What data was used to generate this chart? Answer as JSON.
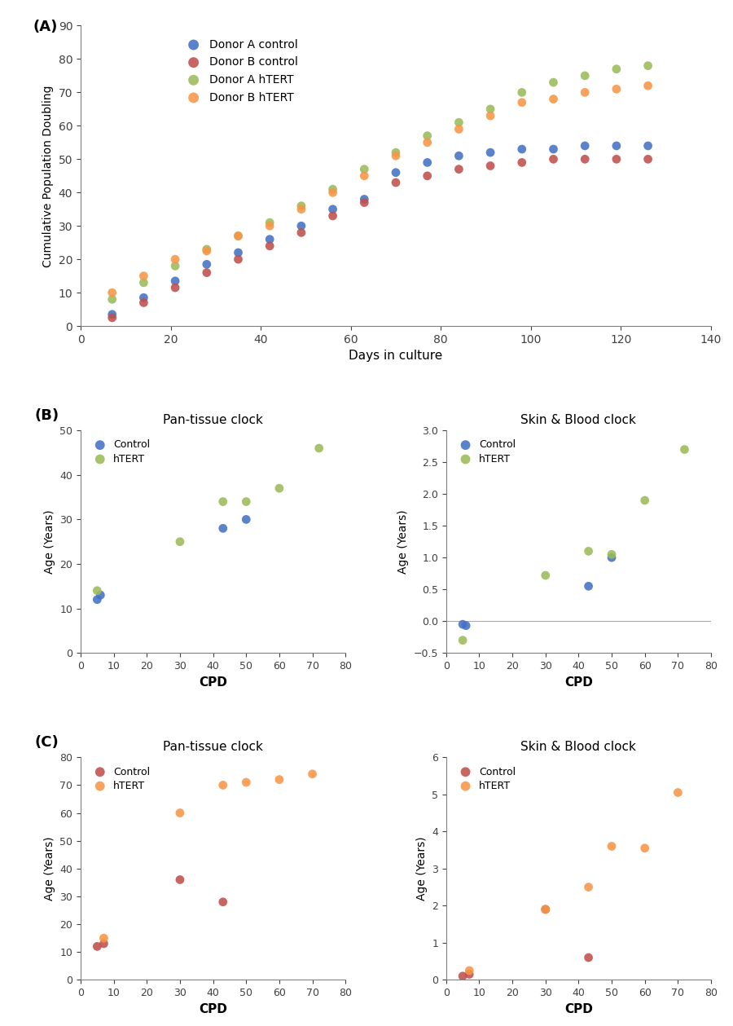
{
  "panel_A": {
    "donor_A_control": {
      "x": [
        7,
        14,
        21,
        28,
        35,
        42,
        49,
        56,
        63,
        70,
        77,
        84,
        91,
        98,
        105,
        112,
        119,
        126
      ],
      "y": [
        3.5,
        8.5,
        13.5,
        18.5,
        22,
        26,
        30,
        35,
        38,
        46,
        49,
        51,
        52,
        53,
        53,
        54,
        54,
        54
      ],
      "color": "#4472C4"
    },
    "donor_B_control": {
      "x": [
        7,
        14,
        21,
        28,
        35,
        42,
        49,
        56,
        63,
        70,
        77,
        84,
        91,
        98,
        105,
        112,
        119,
        126
      ],
      "y": [
        2.5,
        7,
        11.5,
        16,
        20,
        24,
        28,
        33,
        37,
        43,
        45,
        47,
        48,
        49,
        50,
        50,
        50,
        50
      ],
      "color": "#C0504D"
    },
    "donor_A_hTERT": {
      "x": [
        7,
        14,
        21,
        28,
        35,
        42,
        49,
        56,
        63,
        70,
        77,
        84,
        91,
        98,
        105,
        112,
        119,
        126
      ],
      "y": [
        8,
        13,
        18,
        23,
        27,
        31,
        36,
        41,
        47,
        52,
        57,
        61,
        65,
        70,
        73,
        75,
        77,
        78
      ],
      "color": "#9BBB59"
    },
    "donor_B_hTERT": {
      "x": [
        7,
        14,
        21,
        28,
        35,
        42,
        49,
        56,
        63,
        70,
        77,
        84,
        91,
        98,
        105,
        112,
        119,
        126
      ],
      "y": [
        10,
        15,
        20,
        22.5,
        27,
        30,
        35,
        40,
        45,
        51,
        55,
        59,
        63,
        67,
        68,
        70,
        71,
        72
      ],
      "color": "#F79646"
    },
    "xlabel": "Days in culture",
    "ylabel": "Cumulative Population Doubling",
    "xlim": [
      0,
      140
    ],
    "ylim": [
      0,
      90
    ],
    "xticks": [
      0,
      20,
      40,
      60,
      80,
      100,
      120,
      140
    ],
    "yticks": [
      0,
      10,
      20,
      30,
      40,
      50,
      60,
      70,
      80,
      90
    ],
    "legend": [
      "Donor A control",
      "Donor B control",
      "Donor A hTERT",
      "Donor B hTERT"
    ]
  },
  "panel_B_pan": {
    "control": {
      "x": [
        5,
        6,
        43,
        50
      ],
      "y": [
        12,
        13,
        28,
        30
      ],
      "color": "#4472C4"
    },
    "hTERT": {
      "x": [
        5,
        30,
        43,
        50,
        60,
        72
      ],
      "y": [
        14,
        25,
        34,
        34,
        37,
        46
      ],
      "color": "#9BBB59"
    },
    "title": "Pan-tissue clock",
    "xlabel": "CPD",
    "ylabel": "Age (Years)",
    "xlim": [
      0,
      80
    ],
    "ylim": [
      0,
      50
    ],
    "xticks": [
      0,
      10,
      20,
      30,
      40,
      50,
      60,
      70,
      80
    ],
    "yticks": [
      0,
      10,
      20,
      30,
      40,
      50
    ]
  },
  "panel_B_skin": {
    "control": {
      "x": [
        5,
        6,
        43,
        50
      ],
      "y": [
        -0.05,
        -0.07,
        0.55,
        1.0
      ],
      "color": "#4472C4"
    },
    "hTERT": {
      "x": [
        5,
        30,
        43,
        50,
        60,
        72
      ],
      "y": [
        -0.3,
        0.72,
        1.1,
        1.05,
        1.9,
        2.7
      ],
      "color": "#9BBB59"
    },
    "title": "Skin & Blood clock",
    "xlabel": "CPD",
    "ylabel": "Age (Years)",
    "xlim": [
      0,
      80
    ],
    "ylim": [
      -0.5,
      3.0
    ],
    "xticks": [
      0,
      10,
      20,
      30,
      40,
      50,
      60,
      70,
      80
    ],
    "yticks": [
      -0.5,
      0.0,
      0.5,
      1.0,
      1.5,
      2.0,
      2.5,
      3.0
    ]
  },
  "panel_C_pan": {
    "control": {
      "x": [
        5,
        7,
        30,
        43
      ],
      "y": [
        12,
        13,
        36,
        28
      ],
      "color": "#C0504D"
    },
    "hTERT": {
      "x": [
        7,
        30,
        43,
        50,
        60,
        70
      ],
      "y": [
        15,
        60,
        70,
        71,
        72,
        74
      ],
      "color": "#F79646"
    },
    "title": "Pan-tissue clock",
    "xlabel": "CPD",
    "ylabel": "Age (Years)",
    "xlim": [
      0,
      80
    ],
    "ylim": [
      0,
      80
    ],
    "xticks": [
      0,
      10,
      20,
      30,
      40,
      50,
      60,
      70,
      80
    ],
    "yticks": [
      0,
      10,
      20,
      30,
      40,
      50,
      60,
      70,
      80
    ]
  },
  "panel_C_skin": {
    "control": {
      "x": [
        5,
        7,
        30,
        43
      ],
      "y": [
        0.1,
        0.15,
        1.9,
        0.6
      ],
      "color": "#C0504D"
    },
    "hTERT": {
      "x": [
        7,
        30,
        43,
        50,
        60,
        70
      ],
      "y": [
        0.25,
        1.9,
        2.5,
        3.6,
        3.55,
        5.05
      ],
      "color": "#F79646"
    },
    "title": "Skin & Blood clock",
    "xlabel": "CPD",
    "ylabel": "Age (Years)",
    "xlim": [
      0,
      80
    ],
    "ylim": [
      0,
      6
    ],
    "xticks": [
      0,
      10,
      20,
      30,
      40,
      50,
      60,
      70,
      80
    ],
    "yticks": [
      0,
      1,
      2,
      3,
      4,
      5,
      6
    ]
  },
  "marker_size": 60,
  "scatter_alpha": 0.88,
  "bg_color": "#ffffff"
}
